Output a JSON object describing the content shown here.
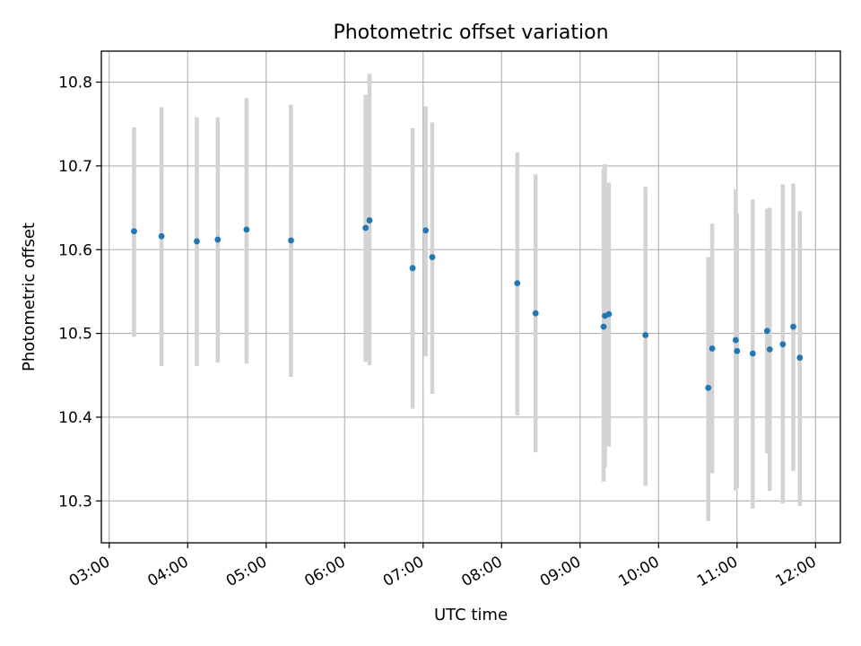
{
  "chart_data": {
    "type": "scatter",
    "title": "Photometric offset variation",
    "xlabel": "UTC time",
    "ylabel": "Photometric offset",
    "xlim": [
      "02:54",
      "12:19"
    ],
    "ylim": [
      10.25,
      10.837
    ],
    "grid": true,
    "colors": {
      "point": "#1f77b4",
      "errorbar": "#d3d3d3"
    },
    "x_ticks": [
      "03:00",
      "04:00",
      "05:00",
      "06:00",
      "07:00",
      "08:00",
      "09:00",
      "10:00",
      "11:00",
      "12:00"
    ],
    "y_ticks": [
      "10.3",
      "10.4",
      "10.5",
      "10.6",
      "10.7",
      "10.8"
    ],
    "points": [
      {
        "time": "03:19",
        "y": 10.622,
        "ylow": 10.496,
        "yhigh": 10.746
      },
      {
        "time": "03:40",
        "y": 10.616,
        "ylow": 10.461,
        "yhigh": 10.77
      },
      {
        "time": "04:07",
        "y": 10.61,
        "ylow": 10.461,
        "yhigh": 10.758
      },
      {
        "time": "04:23",
        "y": 10.612,
        "ylow": 10.465,
        "yhigh": 10.758
      },
      {
        "time": "04:45",
        "y": 10.624,
        "ylow": 10.464,
        "yhigh": 10.781
      },
      {
        "time": "05:19",
        "y": 10.611,
        "ylow": 10.448,
        "yhigh": 10.773
      },
      {
        "time": "06:16",
        "y": 10.626,
        "ylow": 10.466,
        "yhigh": 10.785
      },
      {
        "time": "06:19",
        "y": 10.635,
        "ylow": 10.462,
        "yhigh": 10.81
      },
      {
        "time": "06:52",
        "y": 10.578,
        "ylow": 10.41,
        "yhigh": 10.745
      },
      {
        "time": "07:02",
        "y": 10.623,
        "ylow": 10.473,
        "yhigh": 10.771
      },
      {
        "time": "07:07",
        "y": 10.591,
        "ylow": 10.428,
        "yhigh": 10.752
      },
      {
        "time": "08:12",
        "y": 10.56,
        "ylow": 10.402,
        "yhigh": 10.716
      },
      {
        "time": "08:26",
        "y": 10.524,
        "ylow": 10.358,
        "yhigh": 10.69
      },
      {
        "time": "09:18",
        "y": 10.508,
        "ylow": 10.323,
        "yhigh": 10.697
      },
      {
        "time": "09:19",
        "y": 10.521,
        "ylow": 10.34,
        "yhigh": 10.702
      },
      {
        "time": "09:22",
        "y": 10.523,
        "ylow": 10.365,
        "yhigh": 10.68
      },
      {
        "time": "09:50",
        "y": 10.498,
        "ylow": 10.318,
        "yhigh": 10.675
      },
      {
        "time": "10:38",
        "y": 10.435,
        "ylow": 10.276,
        "yhigh": 10.591
      },
      {
        "time": "10:41",
        "y": 10.482,
        "ylow": 10.333,
        "yhigh": 10.631
      },
      {
        "time": "10:59",
        "y": 10.492,
        "ylow": 10.312,
        "yhigh": 10.672
      },
      {
        "time": "11:00",
        "y": 10.479,
        "ylow": 10.315,
        "yhigh": 10.643
      },
      {
        "time": "11:12",
        "y": 10.476,
        "ylow": 10.291,
        "yhigh": 10.66
      },
      {
        "time": "11:23",
        "y": 10.503,
        "ylow": 10.357,
        "yhigh": 10.649
      },
      {
        "time": "11:25",
        "y": 10.481,
        "ylow": 10.312,
        "yhigh": 10.65
      },
      {
        "time": "11:35",
        "y": 10.487,
        "ylow": 10.297,
        "yhigh": 10.678
      },
      {
        "time": "11:43",
        "y": 10.508,
        "ylow": 10.336,
        "yhigh": 10.679
      },
      {
        "time": "11:48",
        "y": 10.471,
        "ylow": 10.294,
        "yhigh": 10.646
      }
    ]
  }
}
